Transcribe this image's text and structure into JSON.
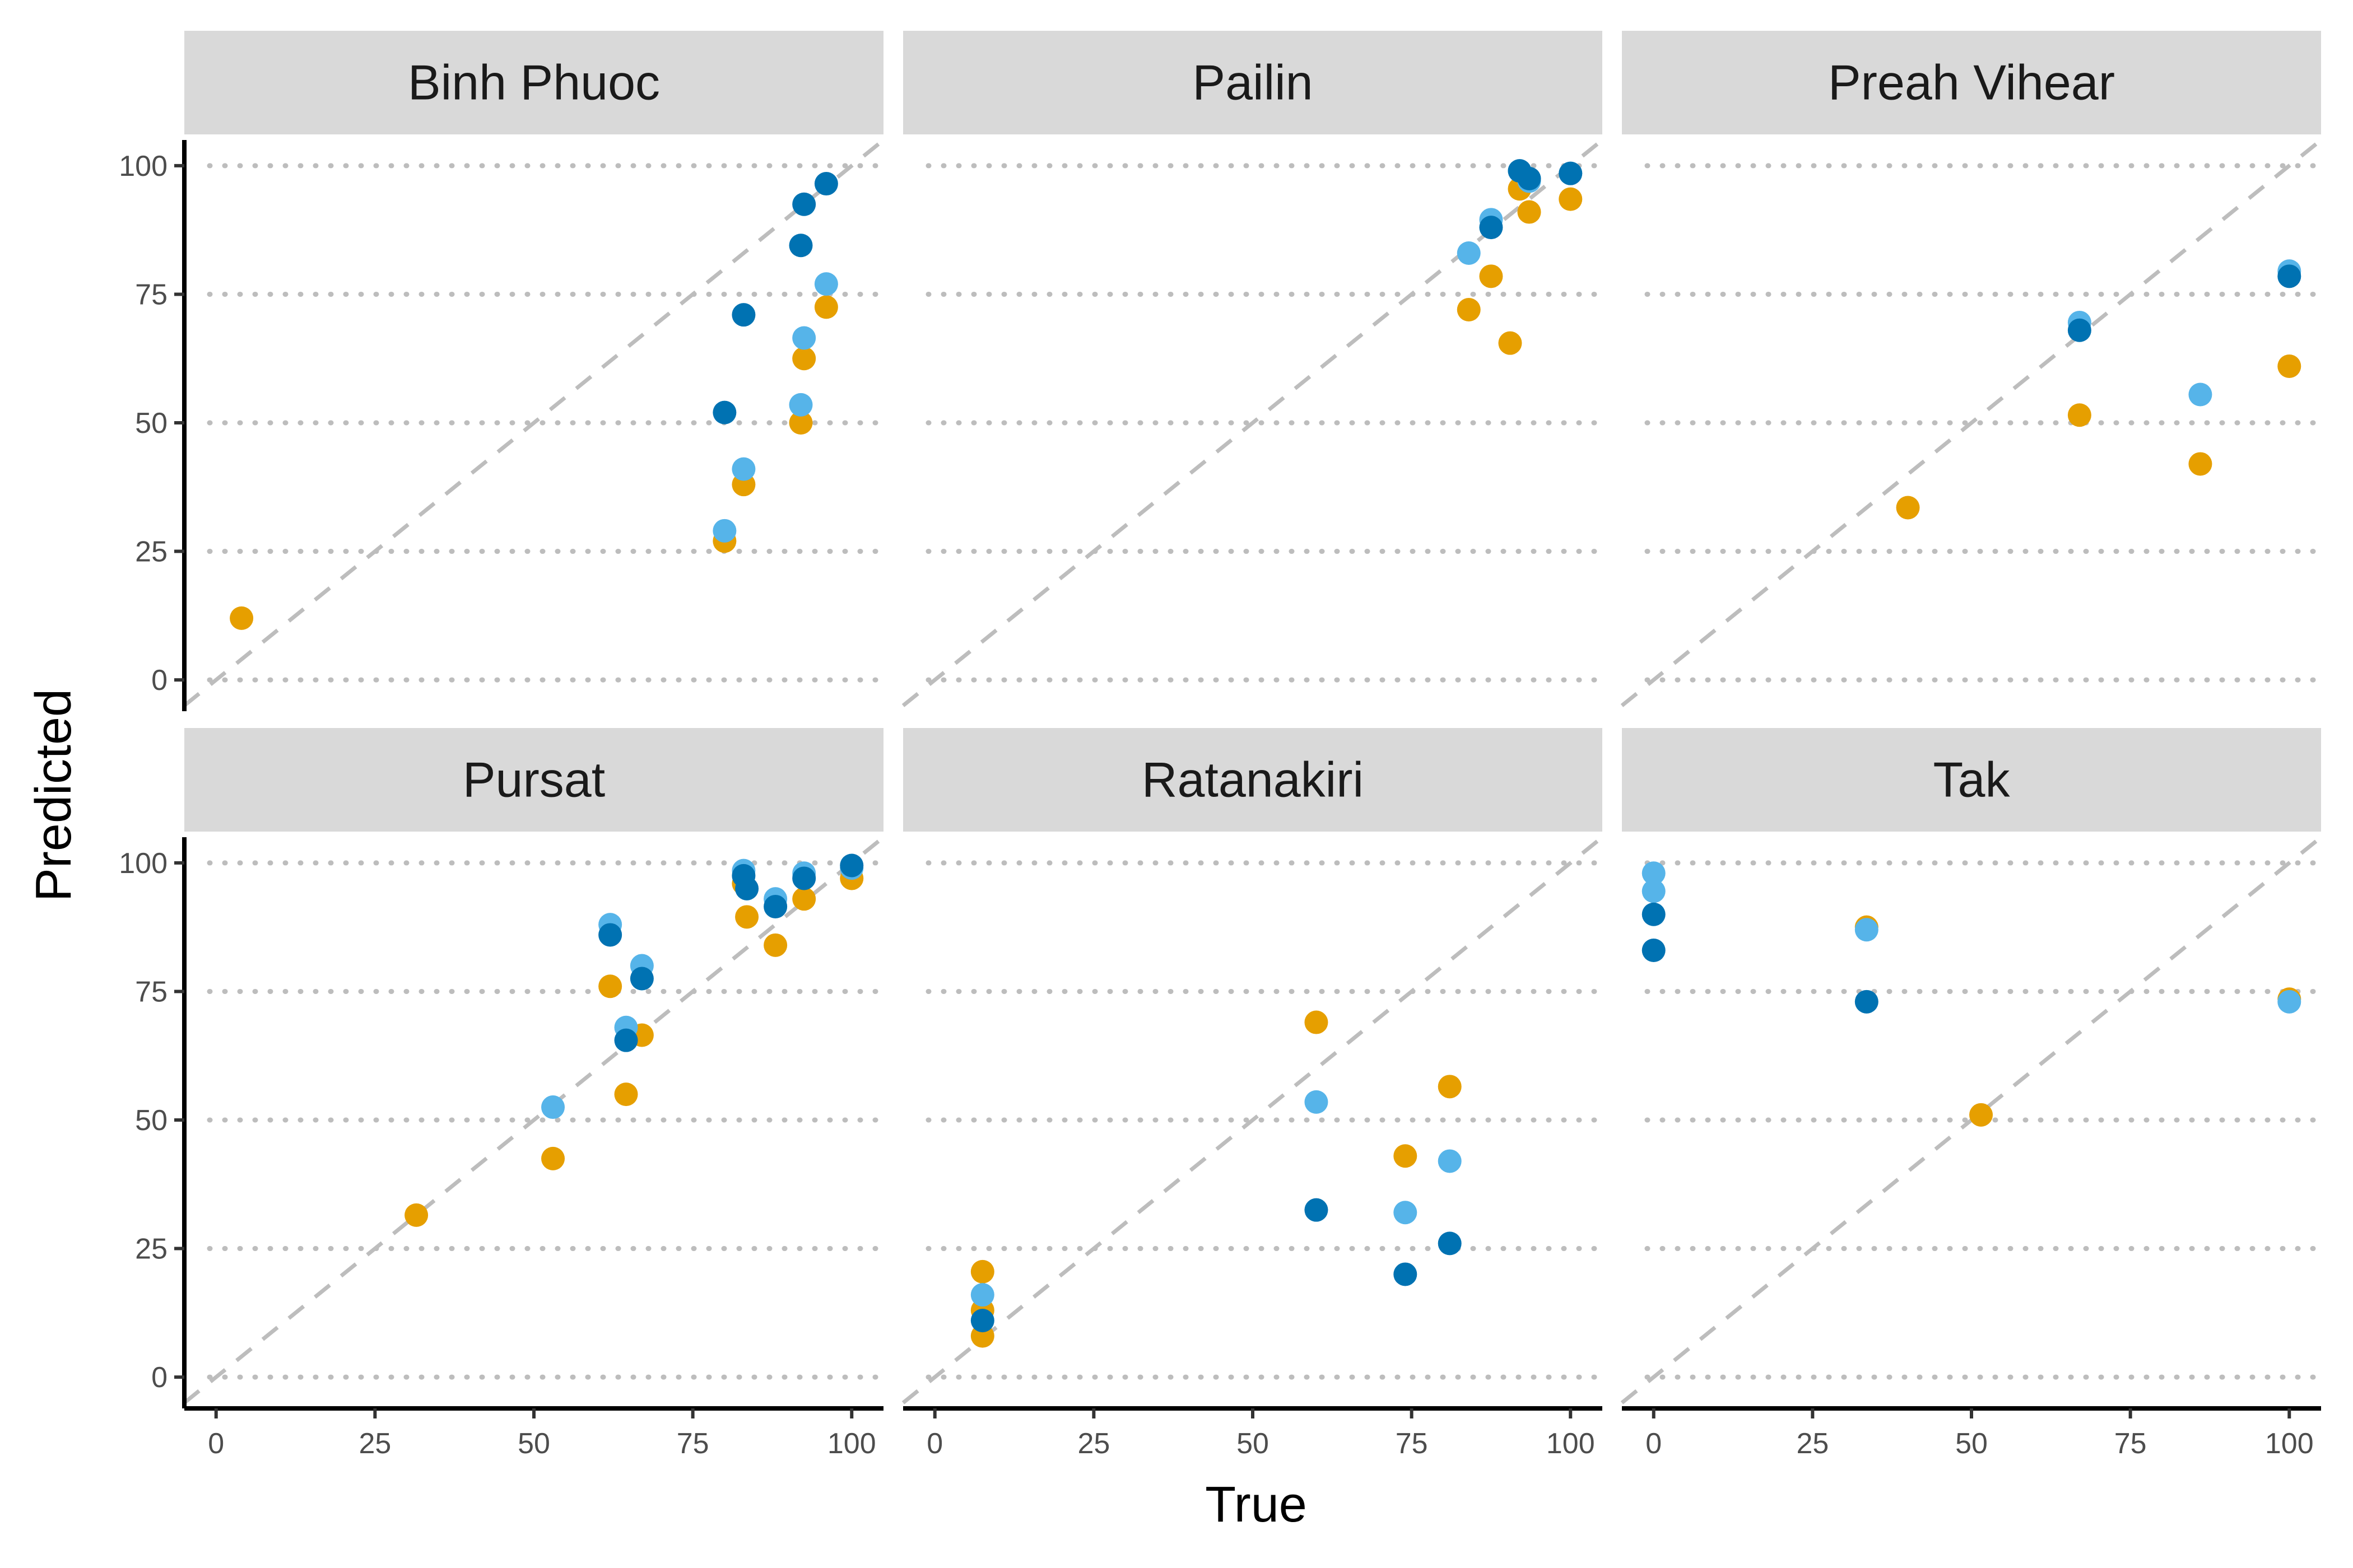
{
  "chart_data": {
    "type": "scatter",
    "xlabel": "True",
    "ylabel": "Predicted",
    "xlim": [
      -5,
      105
    ],
    "ylim": [
      -5,
      105
    ],
    "x_ticks": [
      0,
      25,
      50,
      75,
      100
    ],
    "y_ticks": [
      0,
      25,
      50,
      75,
      100
    ],
    "grid": "horizontal-dotted",
    "reference_line": "y = x (dashed)",
    "legend": "none",
    "series_colors": [
      "#E69F00",
      "#56B4E9",
      "#0072B2"
    ],
    "panels": [
      {
        "title": "Binh Phuoc",
        "series": [
          {
            "color": "#E69F00",
            "points": [
              [
                4,
                12
              ],
              [
                80,
                27
              ],
              [
                83,
                38
              ],
              [
                92,
                50
              ],
              [
                92.5,
                62.5
              ],
              [
                96,
                72.5
              ]
            ]
          },
          {
            "color": "#56B4E9",
            "points": [
              [
                80,
                29
              ],
              [
                83,
                41
              ],
              [
                92,
                53.5
              ],
              [
                92.5,
                66.5
              ],
              [
                96,
                77
              ]
            ]
          },
          {
            "color": "#0072B2",
            "points": [
              [
                80,
                52
              ],
              [
                83,
                71
              ],
              [
                92,
                84.5
              ],
              [
                92.5,
                92.5
              ],
              [
                96,
                96.5
              ]
            ]
          }
        ]
      },
      {
        "title": "Pailin",
        "series": [
          {
            "color": "#E69F00",
            "points": [
              [
                84,
                72
              ],
              [
                87.5,
                78.5
              ],
              [
                90.5,
                65.5
              ],
              [
                92,
                95.5
              ],
              [
                93.5,
                91
              ],
              [
                100,
                93.5
              ]
            ]
          },
          {
            "color": "#56B4E9",
            "points": [
              [
                84,
                83
              ],
              [
                87.5,
                89.5
              ],
              [
                92,
                99
              ],
              [
                93.5,
                97
              ],
              [
                100,
                98.5
              ]
            ]
          },
          {
            "color": "#0072B2",
            "points": [
              [
                87.5,
                88
              ],
              [
                92,
                99
              ],
              [
                93.5,
                97.5
              ],
              [
                100,
                98.5
              ]
            ]
          }
        ]
      },
      {
        "title": "Preah Vihear",
        "series": [
          {
            "color": "#E69F00",
            "points": [
              [
                40,
                33.5
              ],
              [
                67,
                51.5
              ],
              [
                86,
                42
              ],
              [
                100,
                61
              ]
            ]
          },
          {
            "color": "#56B4E9",
            "points": [
              [
                67,
                69.5
              ],
              [
                86,
                55.5
              ],
              [
                100,
                79.5
              ]
            ]
          },
          {
            "color": "#0072B2",
            "points": [
              [
                67,
                68
              ],
              [
                100,
                78.5
              ]
            ]
          }
        ]
      },
      {
        "title": "Pursat",
        "series": [
          {
            "color": "#E69F00",
            "points": [
              [
                31.5,
                31.5
              ],
              [
                53,
                42.5
              ],
              [
                62,
                76
              ],
              [
                64.5,
                55
              ],
              [
                67,
                66.5
              ],
              [
                83,
                96
              ],
              [
                83.5,
                89.5
              ],
              [
                88,
                84
              ],
              [
                92.5,
                93
              ],
              [
                100,
                97
              ]
            ]
          },
          {
            "color": "#56B4E9",
            "points": [
              [
                53,
                52.5
              ],
              [
                62,
                88
              ],
              [
                64.5,
                68
              ],
              [
                67,
                80
              ],
              [
                83,
                98.5
              ],
              [
                88,
                93
              ],
              [
                92.5,
                98
              ],
              [
                100,
                99
              ]
            ]
          },
          {
            "color": "#0072B2",
            "points": [
              [
                62,
                86
              ],
              [
                64.5,
                65.5
              ],
              [
                67,
                77.5
              ],
              [
                83,
                97.5
              ],
              [
                83.5,
                95
              ],
              [
                88,
                91.5
              ],
              [
                92.5,
                97
              ],
              [
                100,
                99.5
              ]
            ]
          }
        ]
      },
      {
        "title": "Ratanakiri",
        "series": [
          {
            "color": "#E69F00",
            "points": [
              [
                7.5,
                8
              ],
              [
                7.5,
                13
              ],
              [
                7.5,
                20.5
              ],
              [
                60,
                69
              ],
              [
                74,
                43
              ],
              [
                81,
                56.5
              ]
            ]
          },
          {
            "color": "#56B4E9",
            "points": [
              [
                7.5,
                16
              ],
              [
                60,
                53.5
              ],
              [
                74,
                32
              ],
              [
                81,
                42
              ]
            ]
          },
          {
            "color": "#0072B2",
            "points": [
              [
                7.5,
                11
              ],
              [
                60,
                32.5
              ],
              [
                74,
                20
              ],
              [
                81,
                26
              ]
            ]
          }
        ]
      },
      {
        "title": "Tak",
        "series": [
          {
            "color": "#E69F00",
            "points": [
              [
                33.5,
                87.5
              ],
              [
                51.5,
                51
              ],
              [
                100,
                73.5
              ]
            ]
          },
          {
            "color": "#56B4E9",
            "points": [
              [
                0,
                98
              ],
              [
                0,
                94.5
              ],
              [
                33.5,
                87
              ],
              [
                100,
                73
              ]
            ]
          },
          {
            "color": "#0072B2",
            "points": [
              [
                0,
                90
              ],
              [
                0,
                83
              ],
              [
                33.5,
                73
              ]
            ]
          }
        ]
      }
    ]
  }
}
